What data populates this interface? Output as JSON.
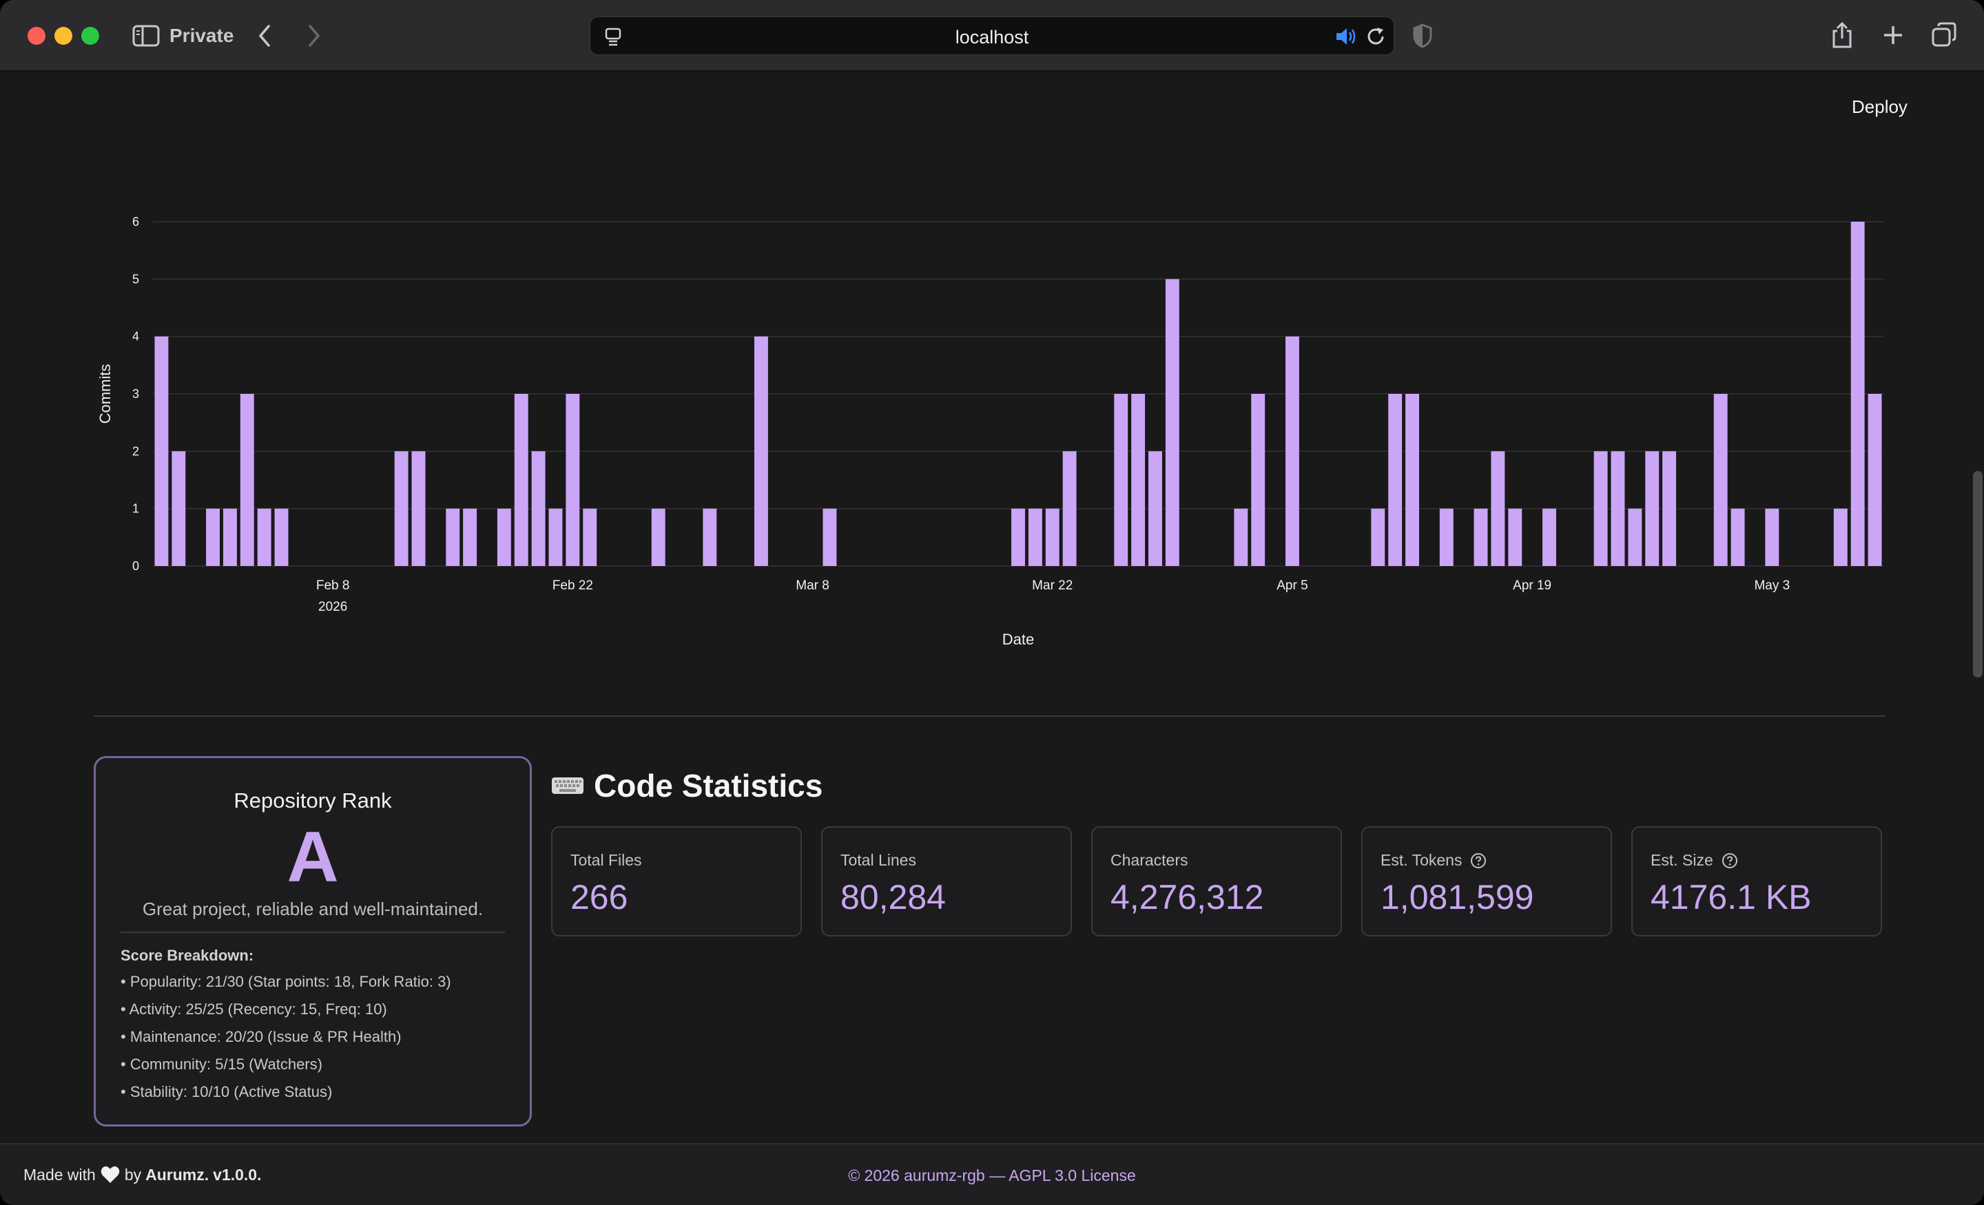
{
  "browser": {
    "mode_label": "Private",
    "address": "localhost"
  },
  "app": {
    "deploy_label": "Deploy"
  },
  "chart_data": {
    "type": "bar",
    "xlabel": "Date",
    "ylabel": "Commits",
    "ylim": [
      0,
      6
    ],
    "y_ticks": [
      0,
      1,
      2,
      3,
      4,
      5,
      6
    ],
    "x_ticks": [
      {
        "date": "2026-02-08",
        "label": "Feb 8",
        "sublabel": "2026"
      },
      {
        "date": "2026-02-22",
        "label": "Feb 22",
        "sublabel": ""
      },
      {
        "date": "2026-03-08",
        "label": "Mar 8",
        "sublabel": ""
      },
      {
        "date": "2026-03-22",
        "label": "Mar 22",
        "sublabel": ""
      },
      {
        "date": "2026-04-05",
        "label": "Apr 5",
        "sublabel": ""
      },
      {
        "date": "2026-04-19",
        "label": "Apr 19",
        "sublabel": ""
      },
      {
        "date": "2026-05-03",
        "label": "May 3",
        "sublabel": ""
      }
    ],
    "grid": true,
    "bar_color": "#cba6f7",
    "points": [
      {
        "x": "2026-01-29",
        "y": 4
      },
      {
        "x": "2026-01-30",
        "y": 2
      },
      {
        "x": "2026-02-01",
        "y": 1
      },
      {
        "x": "2026-02-02",
        "y": 1
      },
      {
        "x": "2026-02-03",
        "y": 3
      },
      {
        "x": "2026-02-04",
        "y": 1
      },
      {
        "x": "2026-02-05",
        "y": 1
      },
      {
        "x": "2026-02-12",
        "y": 2
      },
      {
        "x": "2026-02-13",
        "y": 2
      },
      {
        "x": "2026-02-15",
        "y": 1
      },
      {
        "x": "2026-02-16",
        "y": 1
      },
      {
        "x": "2026-02-18",
        "y": 1
      },
      {
        "x": "2026-02-19",
        "y": 3
      },
      {
        "x": "2026-02-20",
        "y": 2
      },
      {
        "x": "2026-02-21",
        "y": 1
      },
      {
        "x": "2026-02-22",
        "y": 3
      },
      {
        "x": "2026-02-23",
        "y": 1
      },
      {
        "x": "2026-02-27",
        "y": 1
      },
      {
        "x": "2026-03-02",
        "y": 1
      },
      {
        "x": "2026-03-05",
        "y": 4
      },
      {
        "x": "2026-03-09",
        "y": 1
      },
      {
        "x": "2026-03-20",
        "y": 1
      },
      {
        "x": "2026-03-21",
        "y": 1
      },
      {
        "x": "2026-03-22",
        "y": 1
      },
      {
        "x": "2026-03-23",
        "y": 2
      },
      {
        "x": "2026-03-26",
        "y": 3
      },
      {
        "x": "2026-03-27",
        "y": 3
      },
      {
        "x": "2026-03-28",
        "y": 2
      },
      {
        "x": "2026-03-29",
        "y": 5
      },
      {
        "x": "2026-04-02",
        "y": 1
      },
      {
        "x": "2026-04-03",
        "y": 3
      },
      {
        "x": "2026-04-05",
        "y": 4
      },
      {
        "x": "2026-04-10",
        "y": 1
      },
      {
        "x": "2026-04-11",
        "y": 3
      },
      {
        "x": "2026-04-12",
        "y": 3
      },
      {
        "x": "2026-04-14",
        "y": 1
      },
      {
        "x": "2026-04-16",
        "y": 1
      },
      {
        "x": "2026-04-17",
        "y": 2
      },
      {
        "x": "2026-04-18",
        "y": 1
      },
      {
        "x": "2026-04-20",
        "y": 1
      },
      {
        "x": "2026-04-23",
        "y": 2
      },
      {
        "x": "2026-04-24",
        "y": 2
      },
      {
        "x": "2026-04-25",
        "y": 1
      },
      {
        "x": "2026-04-26",
        "y": 2
      },
      {
        "x": "2026-04-27",
        "y": 2
      },
      {
        "x": "2026-04-30",
        "y": 3
      },
      {
        "x": "2026-05-01",
        "y": 1
      },
      {
        "x": "2026-05-03",
        "y": 1
      },
      {
        "x": "2026-05-07",
        "y": 1
      },
      {
        "x": "2026-05-08",
        "y": 6
      },
      {
        "x": "2026-05-09",
        "y": 3
      }
    ]
  },
  "rank": {
    "title": "Repository Rank",
    "grade": "A",
    "description": "Great project, reliable and well-maintained.",
    "breakdown_title": "Score Breakdown:",
    "breakdown": [
      "• Popularity: 21/30 (Star points: 18, Fork Ratio: 3)",
      "• Activity: 25/25 (Recency: 15, Freq: 10)",
      "• Maintenance: 20/20 (Issue & PR Health)",
      "• Community: 5/15 (Watchers)",
      "• Stability: 10/10 (Active Status)"
    ]
  },
  "code_stats": {
    "heading": "Code Statistics",
    "cards": [
      {
        "label": "Total Files",
        "value": "266",
        "help": false
      },
      {
        "label": "Total Lines",
        "value": "80,284",
        "help": false
      },
      {
        "label": "Characters",
        "value": "4,276,312",
        "help": false
      },
      {
        "label": "Est. Tokens",
        "value": "1,081,599",
        "help": true
      },
      {
        "label": "Est. Size",
        "value": "4176.1 KB",
        "help": true
      }
    ]
  },
  "footer": {
    "made_with": "Made with",
    "by": "by",
    "author": "Aurumz.",
    "version": "v1.0.0.",
    "license": "© 2026 aurumz-rgb — AGPL 3.0 License"
  }
}
